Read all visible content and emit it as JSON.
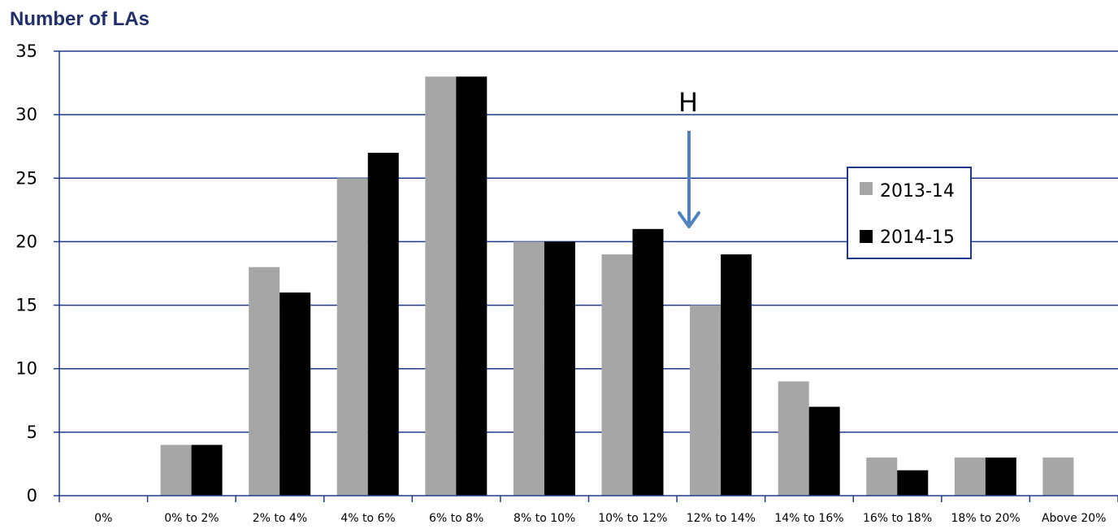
{
  "chart_data": {
    "type": "bar",
    "ylabel": "Number of LAs",
    "categories": [
      "0%",
      "0% to 2%",
      "2% to 4%",
      "4% to 6%",
      "6% to 8%",
      "8% to 10%",
      "10% to 12%",
      "12% to 14%",
      "14% to 16%",
      "16% to 18%",
      "18% to 20%",
      "Above 20%"
    ],
    "series": [
      {
        "name": "2013-14",
        "values": [
          0,
          4,
          18,
          25,
          33,
          20,
          19,
          15,
          9,
          3,
          3,
          3
        ]
      },
      {
        "name": "2014-15",
        "values": [
          0,
          4,
          16,
          27,
          33,
          20,
          21,
          19,
          7,
          2,
          3,
          0
        ]
      }
    ],
    "ylim": [
      0,
      35
    ],
    "yticks": [
      0,
      5,
      10,
      15,
      20,
      25,
      30,
      35
    ],
    "grid": true,
    "legend_position": "right",
    "annotation": {
      "label": "H",
      "points_to": "12% to 14%"
    }
  },
  "colors": {
    "series_2013_14": "#a6a6a6",
    "series_2014_15": "#000000",
    "gridline": "#1f3a8a",
    "axis": "#1f3a8a",
    "title": "#1f2f6b",
    "arrow": "#4f81bd",
    "legend_border": "#1f3a8a"
  }
}
